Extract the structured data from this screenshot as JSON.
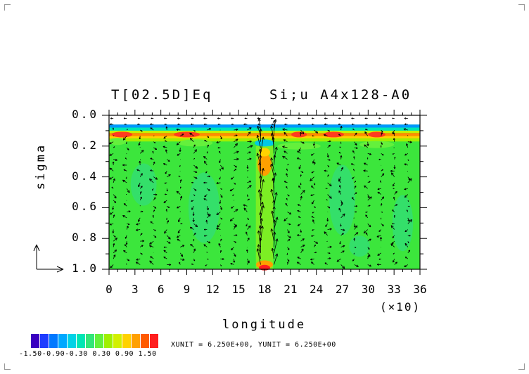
{
  "chart_data": {
    "type": "heatmap",
    "title_left": "T[02.5D]Eq",
    "title_right": "Si;u  A4x128-A0",
    "xlabel": "longitude",
    "ylabel": "sigma",
    "x_scale_note": "(×10)",
    "x_ticks": [
      "0",
      "3",
      "6",
      "9",
      "12",
      "15",
      "18",
      "21",
      "24",
      "27",
      "30",
      "33",
      "36"
    ],
    "y_ticks": [
      "0.0",
      "0.2",
      "0.4",
      "0.6",
      "0.8",
      "1.0"
    ],
    "xlim": [
      0,
      36
    ],
    "ylim": [
      1.0,
      0.0
    ],
    "colorbar": {
      "labels_text": "-1.50-0.90-0.30 0.30 0.90 1.50",
      "colors": [
        "#3a00c0",
        "#1e3cff",
        "#0078ff",
        "#00a8ff",
        "#00d2e6",
        "#00e6b4",
        "#32e678",
        "#64f03c",
        "#a0f000",
        "#d2f000",
        "#ffd200",
        "#ffa000",
        "#ff5a00",
        "#ff1e1e"
      ]
    },
    "unit_note": "XUNIT = 6.250E+00, YUNIT = 6.250E+00"
  }
}
